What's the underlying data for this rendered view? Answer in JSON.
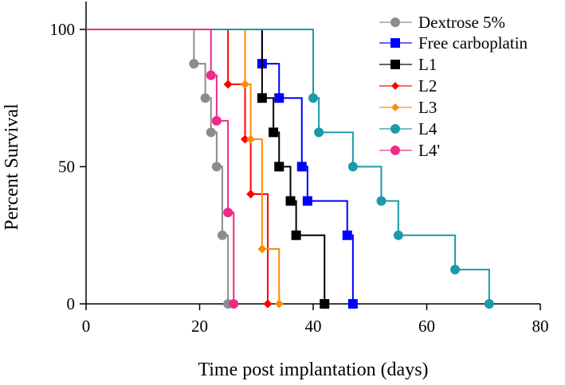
{
  "chart_data": {
    "type": "line",
    "subtype": "kaplan-meier-step",
    "title": "",
    "xlabel": "Time post implantation (days)",
    "ylabel": "Percent Survival",
    "xlim": [
      0,
      80
    ],
    "ylim": [
      0,
      100
    ],
    "xticks": [
      0,
      20,
      40,
      60,
      80
    ],
    "xtick_labels": [
      "0",
      "20",
      "40",
      "60",
      "80"
    ],
    "yticks": [
      0,
      50,
      100
    ],
    "ytick_labels": [
      "0",
      "50",
      "100"
    ],
    "grid": false,
    "legend_position": "top-right",
    "series": [
      {
        "name": "Dextrose 5%",
        "color": "#8c8c8c",
        "marker": "circle",
        "x": [
          19,
          21,
          22,
          23,
          24,
          25
        ],
        "y": [
          87.5,
          75,
          62.5,
          50,
          25,
          0
        ]
      },
      {
        "name": "Free carboplatin",
        "color": "#0000ff",
        "marker": "square",
        "x": [
          31,
          34,
          38,
          39,
          46,
          47
        ],
        "y": [
          87.5,
          75,
          50,
          37.5,
          25,
          0
        ]
      },
      {
        "name": "L1",
        "color": "#000000",
        "marker": "square",
        "x": [
          31,
          33,
          34,
          36,
          37,
          42
        ],
        "y": [
          75,
          62.5,
          50,
          37.5,
          25,
          0
        ]
      },
      {
        "name": "L2",
        "color": "#ff0000",
        "marker": "diamond",
        "x": [
          25,
          28,
          29,
          32
        ],
        "y": [
          80,
          60,
          40,
          0
        ]
      },
      {
        "name": "L3",
        "color": "#ff8c00",
        "marker": "diamond",
        "x": [
          28,
          29,
          31,
          34
        ],
        "y": [
          80,
          60,
          20,
          0
        ]
      },
      {
        "name": "L4",
        "color": "#1a9aaa",
        "marker": "circle",
        "x": [
          40,
          41,
          47,
          52,
          55,
          65,
          71
        ],
        "y": [
          75,
          62.5,
          50,
          37.5,
          25,
          12.5,
          0
        ]
      },
      {
        "name": "L4'",
        "color": "#ee2a8a",
        "marker": "circle",
        "x": [
          22,
          23,
          25,
          26
        ],
        "y": [
          83.3,
          66.7,
          33.3,
          0
        ]
      }
    ]
  }
}
